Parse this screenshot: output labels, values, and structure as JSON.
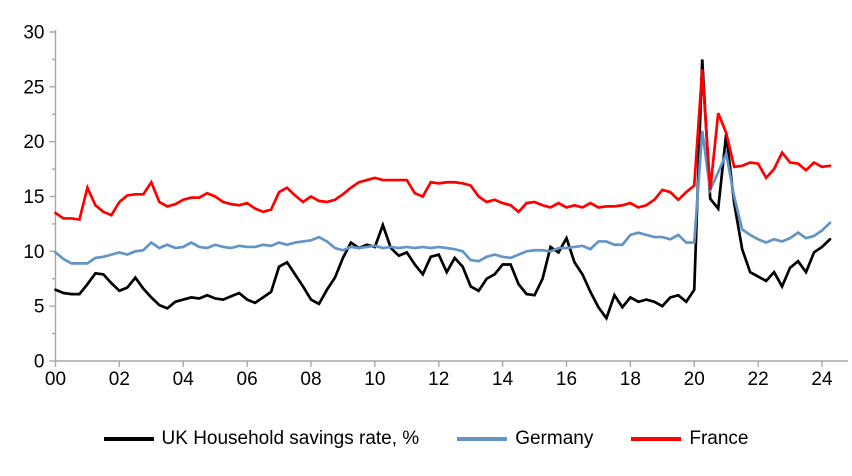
{
  "chart_data": {
    "type": "line",
    "title": "",
    "xlabel": "",
    "ylabel": "",
    "grid": false,
    "legend_position": "bottom",
    "x_axis": {
      "tick_labels": [
        "00",
        "02",
        "04",
        "06",
        "08",
        "10",
        "12",
        "14",
        "16",
        "18",
        "20",
        "22",
        "24"
      ],
      "start_year": 2000,
      "points_per_year": 4,
      "note": "quarterly data 2000Q1 - 2024Q2"
    },
    "y_axis": {
      "min": 0,
      "max": 30,
      "major_tick_interval": 5,
      "minor_tick_interval": 2.5,
      "tick_labels": [
        "0",
        "5",
        "10",
        "15",
        "20",
        "25",
        "30"
      ]
    },
    "series": [
      {
        "name": "UK Household savings rate, %",
        "color": "#000000",
        "values": [
          6.5,
          6.2,
          6.1,
          6.1,
          7.0,
          8.0,
          7.9,
          7.1,
          6.4,
          6.7,
          7.6,
          6.6,
          5.8,
          5.1,
          4.8,
          5.4,
          5.6,
          5.8,
          5.7,
          6.0,
          5.7,
          5.6,
          5.9,
          6.2,
          5.6,
          5.3,
          5.8,
          6.3,
          8.6,
          9.0,
          7.9,
          6.8,
          5.6,
          5.2,
          6.5,
          7.6,
          9.4,
          10.8,
          10.3,
          10.6,
          10.4,
          12.4,
          10.3,
          9.6,
          9.9,
          8.8,
          7.9,
          9.5,
          9.7,
          8.1,
          9.4,
          8.6,
          6.8,
          6.4,
          7.5,
          7.9,
          8.8,
          8.8,
          7.0,
          6.1,
          6.0,
          7.5,
          10.4,
          9.9,
          11.2,
          9.0,
          7.9,
          6.3,
          4.9,
          3.9,
          6.0,
          4.9,
          5.8,
          5.4,
          5.6,
          5.4,
          5.0,
          5.8,
          6.0,
          5.4,
          6.5,
          27.5,
          14.8,
          13.9,
          20.7,
          14.4,
          10.2,
          8.1,
          7.7,
          7.3,
          8.1,
          6.8,
          8.5,
          9.1,
          8.1,
          9.9,
          10.4,
          11.1
        ]
      },
      {
        "name": "Germany",
        "color": "#6394C6",
        "values": [
          9.9,
          9.3,
          8.9,
          8.9,
          8.9,
          9.4,
          9.5,
          9.7,
          9.9,
          9.7,
          10.0,
          10.1,
          10.8,
          10.3,
          10.6,
          10.3,
          10.4,
          10.8,
          10.4,
          10.3,
          10.6,
          10.4,
          10.3,
          10.5,
          10.4,
          10.4,
          10.6,
          10.5,
          10.8,
          10.6,
          10.8,
          10.9,
          11.0,
          11.3,
          10.9,
          10.3,
          10.1,
          10.4,
          10.3,
          10.4,
          10.5,
          10.3,
          10.4,
          10.3,
          10.4,
          10.3,
          10.4,
          10.3,
          10.4,
          10.3,
          10.2,
          10.0,
          9.2,
          9.1,
          9.5,
          9.7,
          9.5,
          9.4,
          9.7,
          10.0,
          10.1,
          10.1,
          10.0,
          10.3,
          10.3,
          10.4,
          10.5,
          10.2,
          10.9,
          10.9,
          10.6,
          10.6,
          11.5,
          11.7,
          11.5,
          11.3,
          11.3,
          11.1,
          11.5,
          10.8,
          10.8,
          21.0,
          15.6,
          17.2,
          18.9,
          15.0,
          12.0,
          11.5,
          11.1,
          10.8,
          11.1,
          10.9,
          11.2,
          11.7,
          11.2,
          11.4,
          11.9,
          12.6
        ]
      },
      {
        "name": "France",
        "color": "#FF0000",
        "values": [
          13.5,
          13.0,
          13.0,
          12.9,
          15.8,
          14.2,
          13.6,
          13.3,
          14.5,
          15.1,
          15.2,
          15.2,
          16.3,
          14.5,
          14.1,
          14.3,
          14.7,
          14.9,
          14.9,
          15.3,
          15.0,
          14.5,
          14.3,
          14.2,
          14.4,
          13.9,
          13.6,
          13.8,
          15.4,
          15.8,
          15.1,
          14.5,
          15.0,
          14.6,
          14.5,
          14.7,
          15.2,
          15.8,
          16.3,
          16.5,
          16.7,
          16.5,
          16.5,
          16.5,
          16.5,
          15.3,
          15.0,
          16.3,
          16.2,
          16.3,
          16.3,
          16.2,
          16.0,
          15.0,
          14.5,
          14.7,
          14.4,
          14.2,
          13.6,
          14.4,
          14.5,
          14.2,
          14.0,
          14.4,
          14.0,
          14.2,
          14.0,
          14.4,
          14.0,
          14.1,
          14.1,
          14.2,
          14.4,
          14.0,
          14.2,
          14.7,
          15.6,
          15.4,
          14.7,
          15.4,
          16.0,
          26.6,
          15.6,
          22.6,
          20.8,
          17.7,
          17.8,
          18.1,
          18.0,
          16.7,
          17.5,
          19.0,
          18.1,
          18.0,
          17.4,
          18.1,
          17.7,
          17.8
        ]
      }
    ]
  },
  "styles": {
    "axis_color": "#A6A6A6",
    "text_color": "#000000",
    "background": "#FFFFFF",
    "line_width": 2.7
  }
}
